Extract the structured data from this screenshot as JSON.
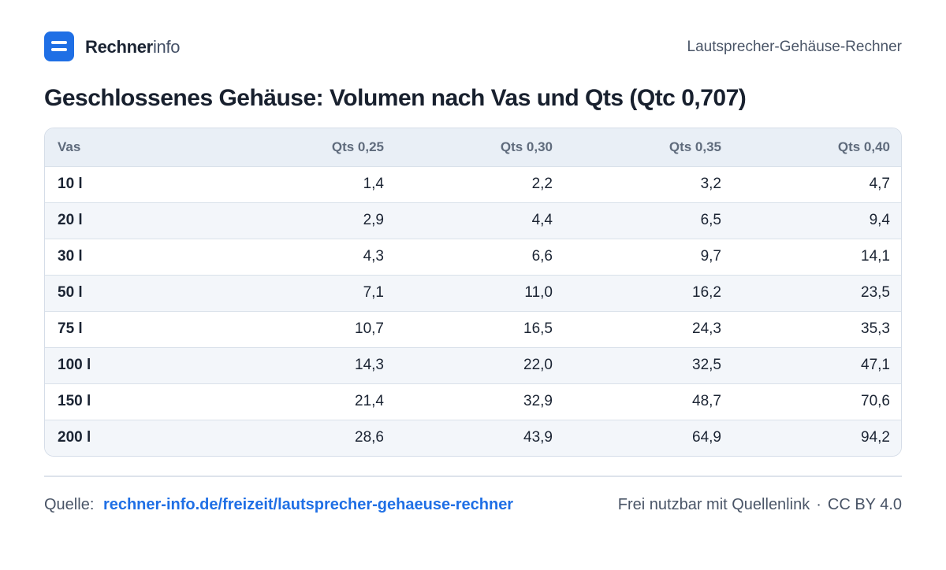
{
  "brand": {
    "name_strong": "Rechner",
    "name_light": "info"
  },
  "header": {
    "right_text": "Lautsprecher-Gehäuse-Rechner"
  },
  "title": "Geschlossenes Gehäuse: Volumen nach Vas und Qts (Qtc 0,707)",
  "table": {
    "columns": [
      "Vas",
      "Qts 0,25",
      "Qts 0,30",
      "Qts 0,35",
      "Qts 0,40"
    ],
    "rows": [
      [
        "10 l",
        "1,4",
        "2,2",
        "3,2",
        "4,7"
      ],
      [
        "20 l",
        "2,9",
        "4,4",
        "6,5",
        "9,4"
      ],
      [
        "30 l",
        "4,3",
        "6,6",
        "9,7",
        "14,1"
      ],
      [
        "50 l",
        "7,1",
        "11,0",
        "16,2",
        "23,5"
      ],
      [
        "75 l",
        "10,7",
        "16,5",
        "24,3",
        "35,3"
      ],
      [
        "100 l",
        "14,3",
        "22,0",
        "32,5",
        "47,1"
      ],
      [
        "150 l",
        "21,4",
        "32,9",
        "48,7",
        "70,6"
      ],
      [
        "200 l",
        "28,6",
        "43,9",
        "64,9",
        "94,2"
      ]
    ]
  },
  "footer": {
    "source_label": "Quelle:",
    "source_link": "rechner-info.de/freizeit/lautsprecher-gehaeuse-rechner",
    "license_text": "Frei nutzbar mit Quellenlink",
    "separator": "·",
    "license": "CC BY 4.0"
  },
  "colors": {
    "accent": "#1f6fe5",
    "header_bg": "#e9eff6",
    "row_alt_bg": "#f3f6fa"
  },
  "icons": {
    "logo": "list-logo-icon"
  }
}
